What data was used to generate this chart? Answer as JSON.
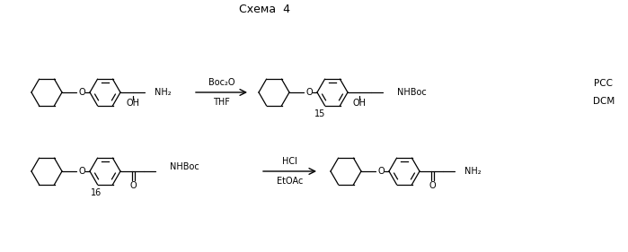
{
  "title": "Схема  4",
  "background": "#ffffff",
  "line_color": "#000000",
  "fig_width": 6.99,
  "fig_height": 2.81,
  "dpi": 100,
  "reaction1_reagent": "Boc₂O",
  "reaction1_solvent": "THF",
  "reaction2_reagent": "HCl",
  "reaction2_solvent": "EtOAc",
  "label_15": "15",
  "label_16": "16",
  "label_PCC": "PCC",
  "label_DCM": "DCM",
  "amine_top": "NH₂",
  "nhboc_top": "NHBoc",
  "nhboc_bottom": "NHBoc",
  "amine_bottom": "NH₂",
  "oh_label": "OH",
  "o_label": "O",
  "carbonyl_label": "O"
}
